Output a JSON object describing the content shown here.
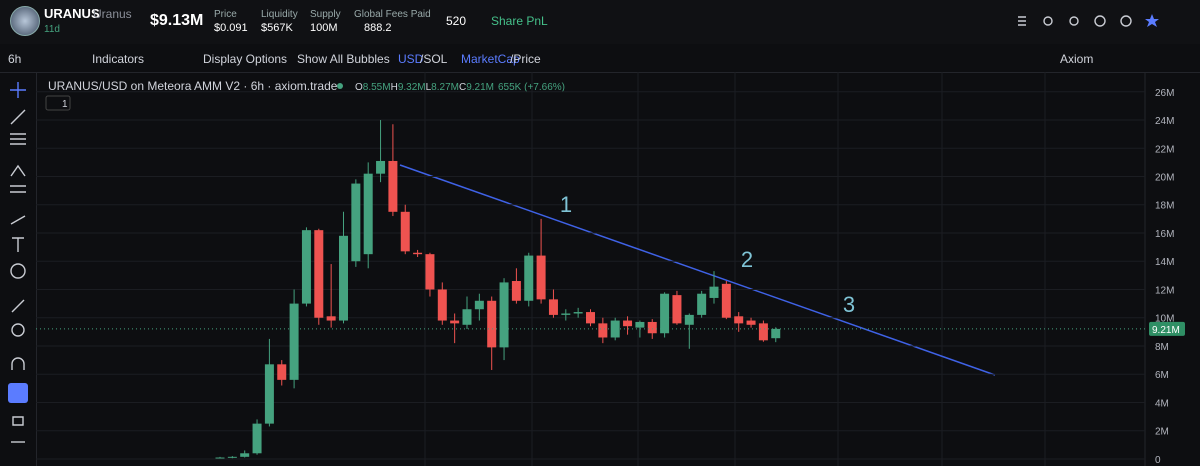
{
  "header": {
    "token": "URANUS",
    "name": "Uranus",
    "age": "11d",
    "market_cap": "$9.13M",
    "stats": [
      {
        "label": "Price",
        "value": "$0.091"
      },
      {
        "label": "Liquidity",
        "value": "$567K"
      },
      {
        "label": "Supply",
        "value": "100M"
      },
      {
        "label": "Global Fees Paid",
        "value": "888.2"
      }
    ],
    "holders": "520",
    "share": "Share PnL"
  },
  "toolbar": {
    "interval": "6h",
    "indicators": "Indicators",
    "display": "Display Options",
    "bubbles": "Show All Bubbles",
    "usd": "USD",
    "sol": "/SOL",
    "mcap": "MarketCap",
    "price": "/Price",
    "source": "Axiom"
  },
  "chart_data": {
    "type": "candlestick",
    "title": "URANUS/USD on Meteora AMM V2 · 6h · axiom.trade",
    "legend": {
      "o_label": "O",
      "o": "8.55M",
      "h_label": "H",
      "h": "9.32M",
      "l_label": "L",
      "l": "8.27M",
      "c_label": "C",
      "c": "9.21M",
      "change": "655K (+7.66%)"
    },
    "pane_count": "1",
    "ylim": [
      -0.5,
      27.4
    ],
    "yticks": [
      0,
      {
        "value": 2,
        "label": "2M"
      },
      {
        "value": 4,
        "label": "4M"
      },
      {
        "value": 6,
        "label": "6M"
      },
      {
        "value": 8,
        "label": "8M"
      },
      {
        "value": 10,
        "label": "10M"
      },
      {
        "value": 12,
        "label": "12M"
      },
      {
        "value": 14,
        "label": "14M"
      },
      {
        "value": 16,
        "label": "16M"
      },
      {
        "value": 18,
        "label": "18M"
      },
      {
        "value": 20,
        "label": "20M"
      },
      {
        "value": 22,
        "label": "22M"
      },
      {
        "value": 24,
        "label": "24M"
      },
      {
        "value": 26,
        "label": "26M"
      }
    ],
    "grid": true,
    "up_color": "#45a27f",
    "down_color": "#ef5350",
    "open": [
      0.1,
      0.1,
      0.15,
      0.4,
      2.5,
      6.7,
      5.6,
      11.0,
      16.2,
      10.1,
      9.8,
      14.0,
      14.5,
      20.2,
      21.1,
      17.5,
      14.6,
      14.5,
      12.0,
      9.8,
      9.5,
      10.6,
      11.2,
      7.9,
      12.6,
      11.2,
      14.4,
      11.3,
      10.2,
      10.3,
      10.4,
      9.6,
      8.6,
      9.8,
      9.3,
      9.7,
      8.9,
      11.6,
      9.5,
      10.2,
      11.4,
      12.4,
      10.1,
      9.8,
      9.6,
      8.55
    ],
    "high": [
      0.15,
      0.2,
      0.6,
      2.8,
      8.5,
      7.0,
      12.0,
      16.4,
      16.3,
      13.8,
      17.5,
      19.8,
      21.0,
      24.0,
      23.7,
      18.0,
      14.8,
      14.6,
      12.5,
      10.3,
      11.5,
      11.7,
      11.5,
      12.8,
      13.5,
      14.6,
      17.0,
      12.0,
      10.6,
      10.7,
      10.6,
      10.0,
      10.0,
      10.1,
      9.8,
      9.9,
      11.8,
      11.9,
      10.3,
      11.9,
      13.3,
      12.6,
      10.4,
      10.0,
      9.8,
      9.32
    ],
    "low": [
      0.05,
      0.05,
      0.1,
      0.3,
      2.3,
      5.2,
      5.0,
      10.8,
      9.5,
      9.3,
      9.6,
      13.6,
      13.5,
      19.6,
      17.2,
      14.5,
      14.3,
      11.5,
      9.5,
      8.2,
      9.2,
      9.8,
      6.3,
      7.0,
      11.0,
      10.8,
      11.0,
      10.0,
      9.8,
      10.0,
      9.4,
      8.2,
      8.4,
      8.8,
      8.6,
      8.5,
      8.6,
      9.5,
      7.8,
      10.0,
      11.0,
      9.9,
      9.0,
      9.3,
      8.3,
      8.27
    ],
    "close": [
      0.1,
      0.15,
      0.4,
      2.5,
      6.7,
      5.6,
      11.0,
      16.2,
      10.0,
      9.8,
      15.8,
      19.5,
      20.2,
      21.1,
      17.5,
      14.7,
      14.5,
      12.0,
      9.8,
      9.6,
      10.6,
      11.2,
      7.9,
      12.5,
      11.2,
      14.4,
      11.3,
      10.2,
      10.3,
      10.4,
      9.6,
      8.6,
      9.8,
      9.4,
      9.7,
      8.9,
      11.7,
      9.6,
      10.2,
      11.7,
      12.2,
      10.0,
      9.6,
      9.5,
      8.4,
      9.21
    ],
    "current_price": {
      "value": 9.21,
      "label": "9.21M"
    },
    "annotations": [
      "1",
      "2",
      "3"
    ]
  }
}
